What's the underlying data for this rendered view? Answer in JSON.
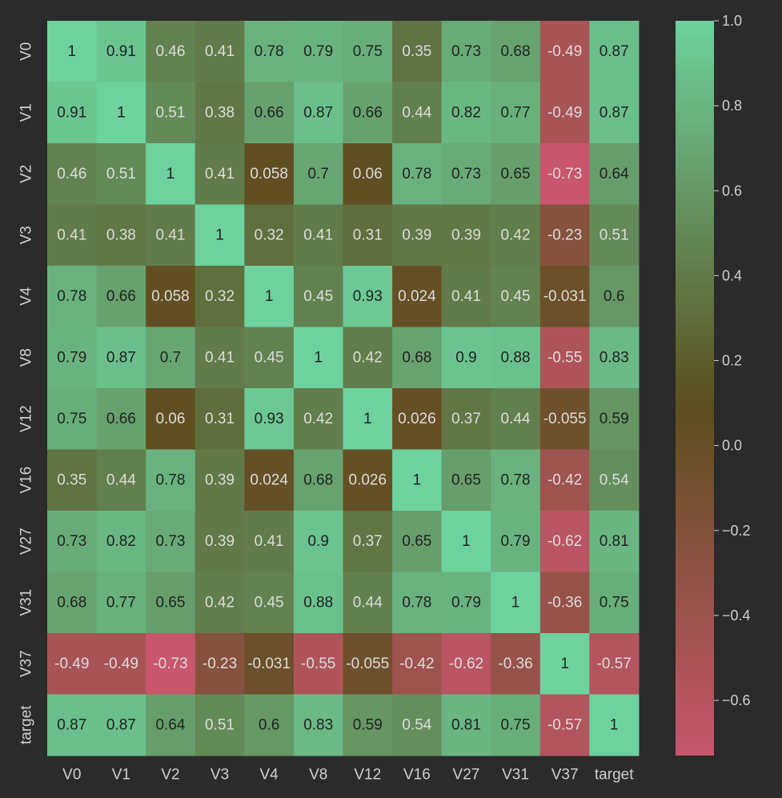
{
  "chart_data": {
    "type": "heatmap",
    "labels": [
      "V0",
      "V1",
      "V2",
      "V3",
      "V4",
      "V8",
      "V12",
      "V16",
      "V27",
      "V31",
      "V37",
      "target"
    ],
    "matrix": [
      [
        1,
        0.91,
        0.46,
        0.41,
        0.78,
        0.79,
        0.75,
        0.35,
        0.73,
        0.68,
        -0.49,
        0.87
      ],
      [
        0.91,
        1,
        0.51,
        0.38,
        0.66,
        0.87,
        0.66,
        0.44,
        0.82,
        0.77,
        -0.49,
        0.87
      ],
      [
        0.46,
        0.51,
        1,
        0.41,
        0.058,
        0.7,
        0.06,
        0.78,
        0.73,
        0.65,
        -0.73,
        0.64
      ],
      [
        0.41,
        0.38,
        0.41,
        1,
        0.32,
        0.41,
        0.31,
        0.39,
        0.39,
        0.42,
        -0.23,
        0.51
      ],
      [
        0.78,
        0.66,
        0.058,
        0.32,
        1,
        0.45,
        0.93,
        0.024,
        0.41,
        0.45,
        -0.031,
        0.6
      ],
      [
        0.79,
        0.87,
        0.7,
        0.41,
        0.45,
        1,
        0.42,
        0.68,
        0.9,
        0.88,
        -0.55,
        0.83
      ],
      [
        0.75,
        0.66,
        0.06,
        0.31,
        0.93,
        0.42,
        1,
        0.026,
        0.37,
        0.44,
        -0.055,
        0.59
      ],
      [
        0.35,
        0.44,
        0.78,
        0.39,
        0.024,
        0.68,
        0.026,
        1,
        0.65,
        0.78,
        -0.42,
        0.54
      ],
      [
        0.73,
        0.82,
        0.73,
        0.39,
        0.41,
        0.9,
        0.37,
        0.65,
        1,
        0.79,
        -0.62,
        0.81
      ],
      [
        0.68,
        0.77,
        0.65,
        0.42,
        0.45,
        0.88,
        0.44,
        0.78,
        0.79,
        1,
        -0.36,
        0.75
      ],
      [
        -0.49,
        -0.49,
        -0.73,
        -0.23,
        -0.031,
        -0.55,
        -0.055,
        -0.42,
        -0.62,
        -0.36,
        1,
        -0.57
      ],
      [
        0.87,
        0.87,
        0.64,
        0.51,
        0.6,
        0.83,
        0.59,
        0.54,
        0.81,
        0.75,
        -0.57,
        1
      ]
    ],
    "value_labels": [
      [
        "1",
        "0.91",
        "0.46",
        "0.41",
        "0.78",
        "0.79",
        "0.75",
        "0.35",
        "0.73",
        "0.68",
        "-0.49",
        "0.87"
      ],
      [
        "0.91",
        "1",
        "0.51",
        "0.38",
        "0.66",
        "0.87",
        "0.66",
        "0.44",
        "0.82",
        "0.77",
        "-0.49",
        "0.87"
      ],
      [
        "0.46",
        "0.51",
        "1",
        "0.41",
        "0.058",
        "0.7",
        "0.06",
        "0.78",
        "0.73",
        "0.65",
        "-0.73",
        "0.64"
      ],
      [
        "0.41",
        "0.38",
        "0.41",
        "1",
        "0.32",
        "0.41",
        "0.31",
        "0.39",
        "0.39",
        "0.42",
        "-0.23",
        "0.51"
      ],
      [
        "0.78",
        "0.66",
        "0.058",
        "0.32",
        "1",
        "0.45",
        "0.93",
        "0.024",
        "0.41",
        "0.45",
        "-0.031",
        "0.6"
      ],
      [
        "0.79",
        "0.87",
        "0.7",
        "0.41",
        "0.45",
        "1",
        "0.42",
        "0.68",
        "0.9",
        "0.88",
        "-0.55",
        "0.83"
      ],
      [
        "0.75",
        "0.66",
        "0.06",
        "0.31",
        "0.93",
        "0.42",
        "1",
        "0.026",
        "0.37",
        "0.44",
        "-0.055",
        "0.59"
      ],
      [
        "0.35",
        "0.44",
        "0.78",
        "0.39",
        "0.024",
        "0.68",
        "0.026",
        "1",
        "0.65",
        "0.78",
        "-0.42",
        "0.54"
      ],
      [
        "0.73",
        "0.82",
        "0.73",
        "0.39",
        "0.41",
        "0.9",
        "0.37",
        "0.65",
        "1",
        "0.79",
        "-0.62",
        "0.81"
      ],
      [
        "0.68",
        "0.77",
        "0.65",
        "0.42",
        "0.45",
        "0.88",
        "0.44",
        "0.78",
        "0.79",
        "1",
        "-0.36",
        "0.75"
      ],
      [
        "-0.49",
        "-0.49",
        "-0.73",
        "-0.23",
        "-0.031",
        "-0.55",
        "-0.055",
        "-0.42",
        "-0.62",
        "-0.36",
        "1",
        "-0.57"
      ],
      [
        "0.87",
        "0.87",
        "0.64",
        "0.51",
        "0.6",
        "0.83",
        "0.59",
        "0.54",
        "0.81",
        "0.75",
        "-0.57",
        "1"
      ]
    ],
    "colorbar": {
      "vmin": -0.73,
      "vmax": 1.0,
      "ticks": [
        1.0,
        0.8,
        0.6,
        0.4,
        0.2,
        0.0,
        -0.2,
        -0.4,
        -0.6
      ],
      "tick_labels": [
        "1.0",
        "0.8",
        "0.6",
        "0.4",
        "0.2",
        "0.0",
        "−0.2",
        "−0.4",
        "−0.6"
      ],
      "orientation": "vertical",
      "position": "right"
    },
    "colormap": {
      "low": "#c8566d",
      "mid": "#5b4f1e",
      "high": "#6dd29e",
      "mid_value": 0.1
    },
    "text_colors": {
      "dark": "#222222",
      "light": "#dcdcdc"
    },
    "title": "",
    "xlabel": "",
    "ylabel": "",
    "grid": false
  }
}
